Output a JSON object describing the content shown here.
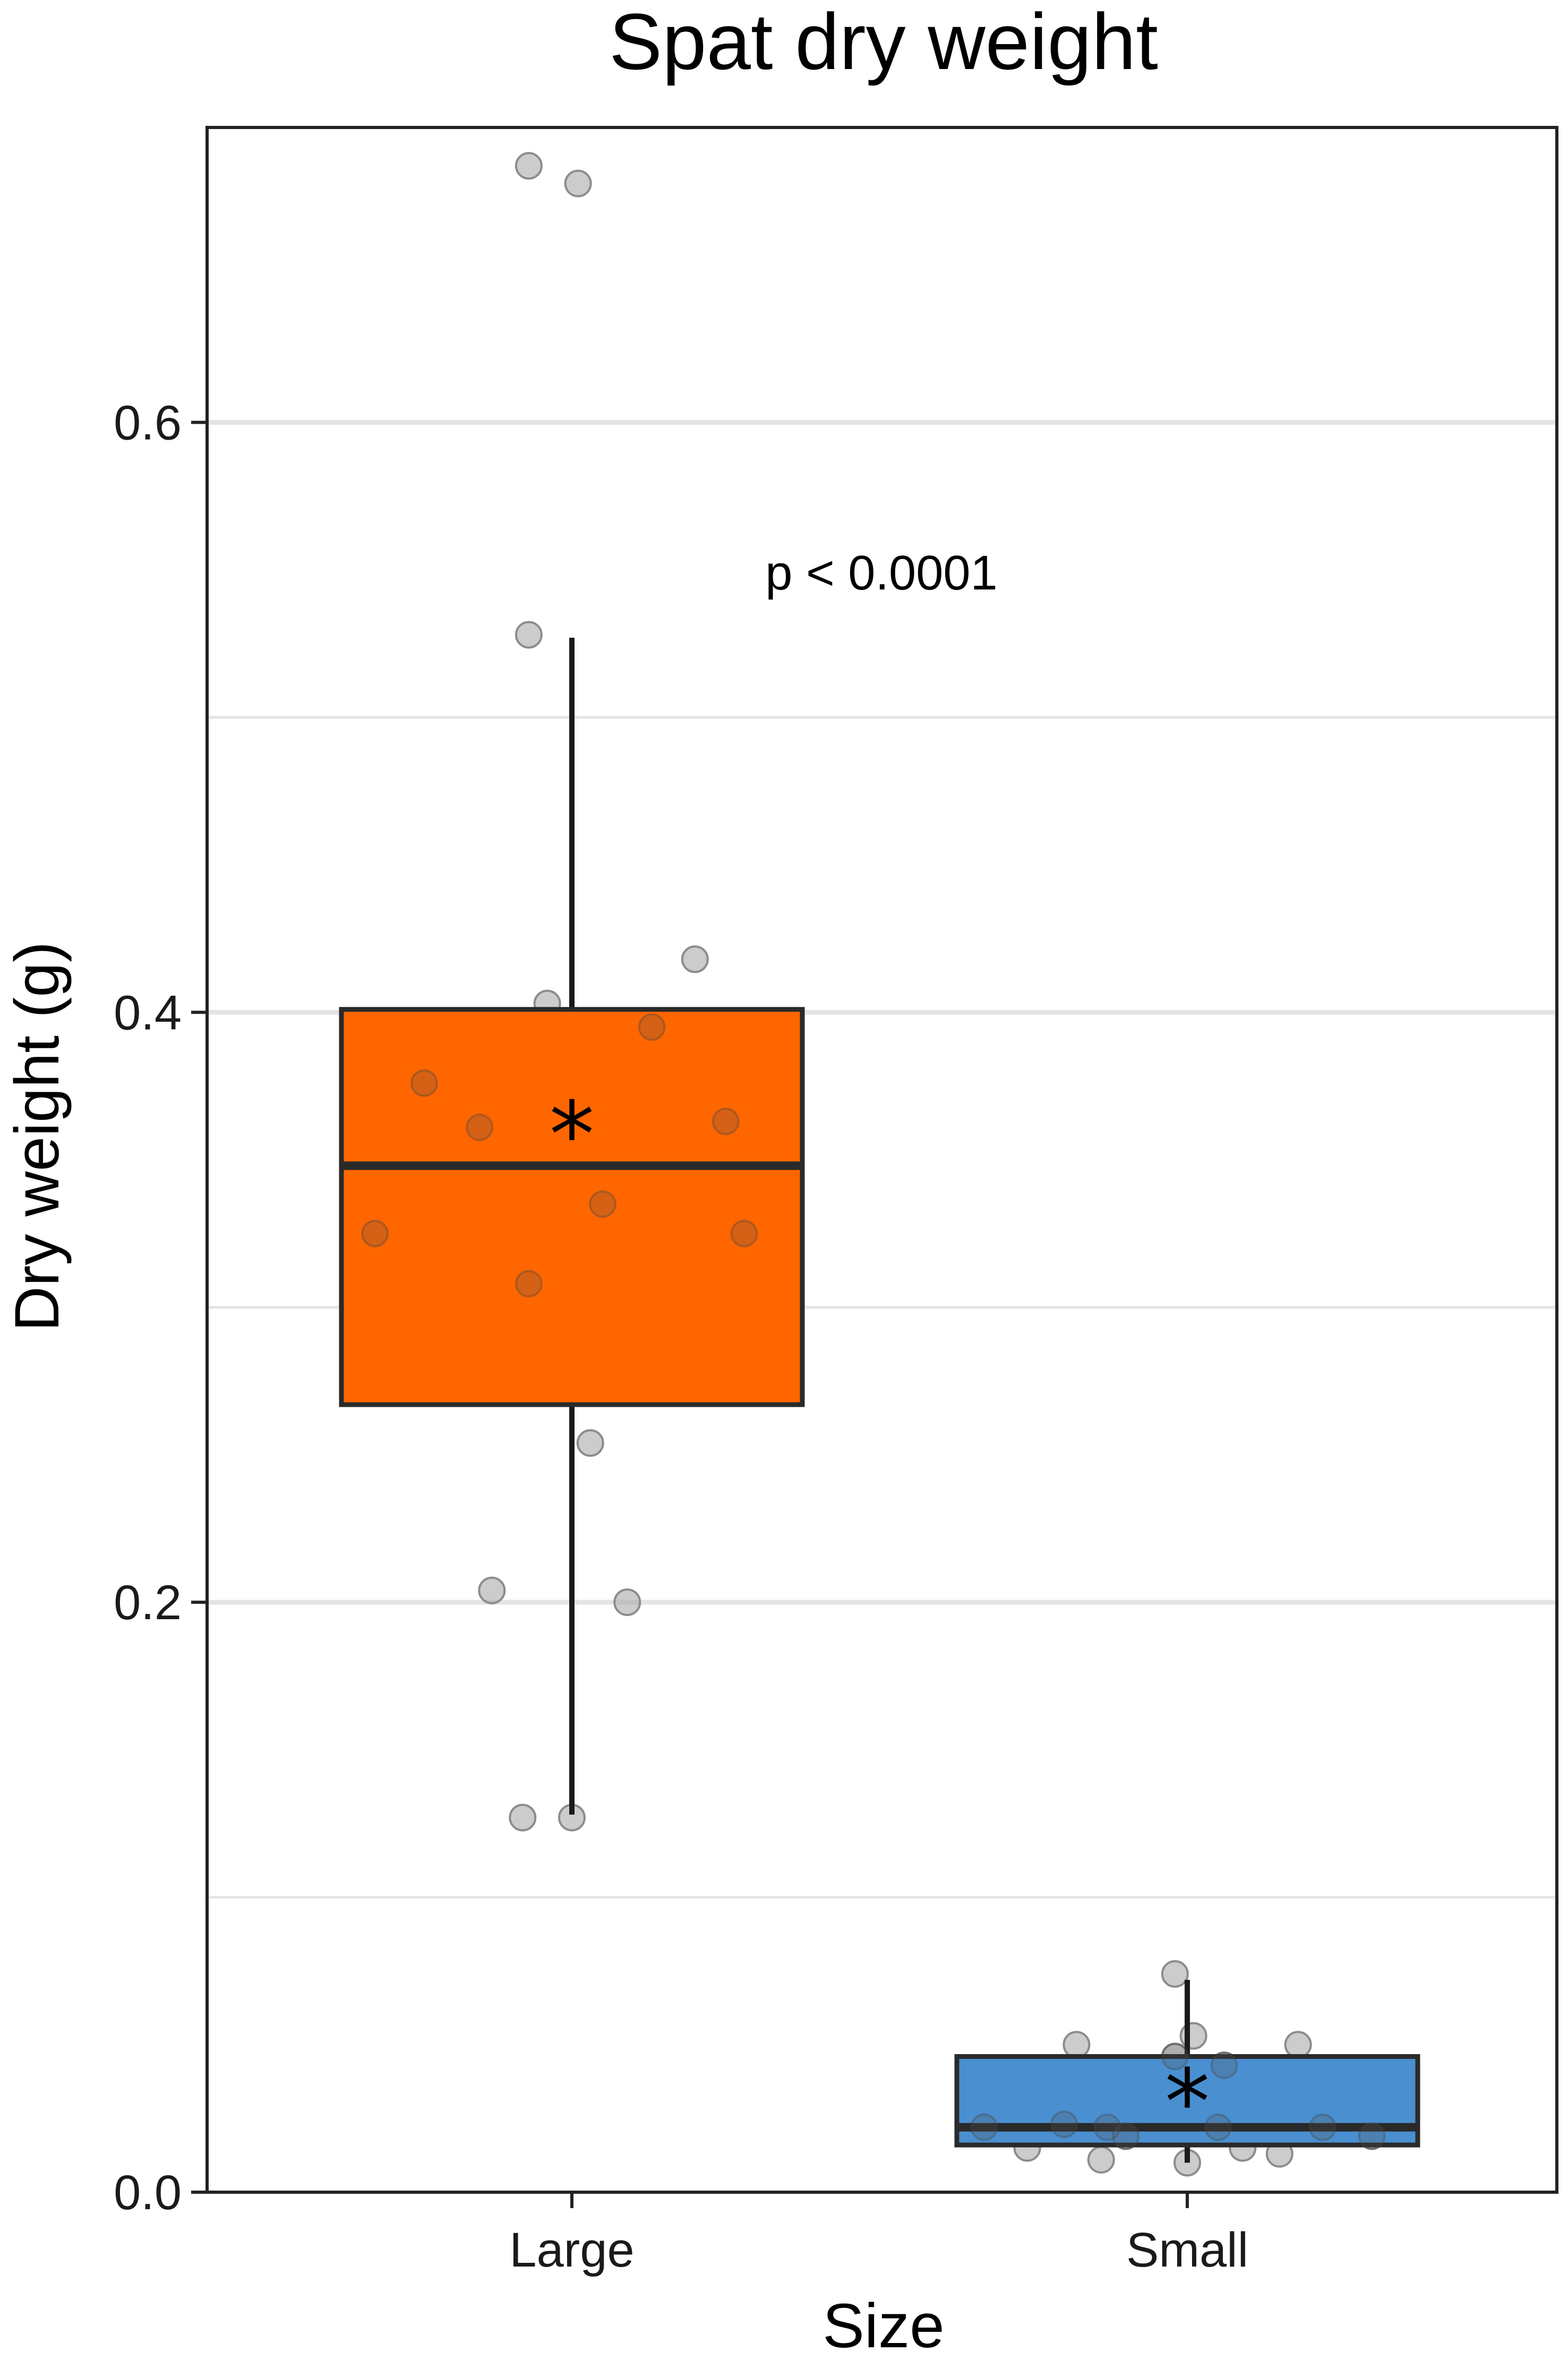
{
  "chart_data": {
    "type": "box",
    "title": "Spat dry weight",
    "xlabel": "Size",
    "ylabel": "Dry weight (g)",
    "ylim": [
      0,
      0.7
    ],
    "yticks": [
      0.0,
      0.2,
      0.4,
      0.6
    ],
    "ytick_labels": [
      "0.0",
      "0.2",
      "0.4",
      "0.6"
    ],
    "grid": "horizontal",
    "legend": "none",
    "annotation": "p < 0.0001",
    "mean_marker": "*",
    "point_color": "#aaaaaa",
    "categories": [
      "Large",
      "Small"
    ],
    "groups": [
      {
        "name": "Large",
        "color": "#ff6600",
        "q1": 0.267,
        "median": 0.348,
        "q3": 0.401,
        "whisker_low": 0.128,
        "whisker_high": 0.527,
        "mean": 0.365,
        "points": [
          {
            "x": -0.07,
            "y": 0.687
          },
          {
            "x": 0.01,
            "y": 0.681
          },
          {
            "x": -0.07,
            "y": 0.528
          },
          {
            "x": 0.2,
            "y": 0.418
          },
          {
            "x": -0.04,
            "y": 0.403
          },
          {
            "x": 0.13,
            "y": 0.395
          },
          {
            "x": -0.24,
            "y": 0.376
          },
          {
            "x": -0.15,
            "y": 0.361
          },
          {
            "x": 0.25,
            "y": 0.363
          },
          {
            "x": 0.05,
            "y": 0.335
          },
          {
            "x": -0.32,
            "y": 0.325
          },
          {
            "x": 0.28,
            "y": 0.325
          },
          {
            "x": -0.07,
            "y": 0.308
          },
          {
            "x": 0.03,
            "y": 0.254
          },
          {
            "x": -0.13,
            "y": 0.204
          },
          {
            "x": 0.09,
            "y": 0.2
          },
          {
            "x": -0.08,
            "y": 0.127
          },
          {
            "x": 0.0,
            "y": 0.127
          }
        ]
      },
      {
        "name": "Small",
        "color": "#4a8fd0",
        "q1": 0.016,
        "median": 0.022,
        "q3": 0.046,
        "whisker_low": 0.01,
        "whisker_high": 0.072,
        "mean": 0.037,
        "points": [
          {
            "x": -0.02,
            "y": 0.074
          },
          {
            "x": 0.01,
            "y": 0.053
          },
          {
            "x": -0.18,
            "y": 0.05
          },
          {
            "x": 0.18,
            "y": 0.05
          },
          {
            "x": -0.02,
            "y": 0.046
          },
          {
            "x": 0.06,
            "y": 0.043
          },
          {
            "x": -0.33,
            "y": 0.022
          },
          {
            "x": -0.2,
            "y": 0.023
          },
          {
            "x": -0.13,
            "y": 0.022
          },
          {
            "x": 0.05,
            "y": 0.022
          },
          {
            "x": 0.22,
            "y": 0.022
          },
          {
            "x": -0.1,
            "y": 0.019
          },
          {
            "x": 0.3,
            "y": 0.019
          },
          {
            "x": -0.26,
            "y": 0.015
          },
          {
            "x": 0.09,
            "y": 0.015
          },
          {
            "x": 0.15,
            "y": 0.013
          },
          {
            "x": -0.14,
            "y": 0.011
          },
          {
            "x": 0.0,
            "y": 0.01
          }
        ]
      }
    ]
  }
}
